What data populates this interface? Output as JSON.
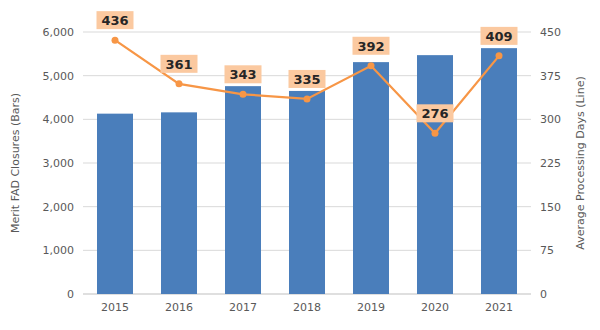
{
  "chart_data": {
    "type": "bar",
    "categories": [
      "2015",
      "2016",
      "2017",
      "2018",
      "2019",
      "2020",
      "2021"
    ],
    "series": [
      {
        "type": "bar",
        "color": "#4a7ebb",
        "values": [
          4130,
          4160,
          4760,
          4650,
          5310,
          5470,
          5630
        ]
      },
      {
        "type": "line",
        "axis": "y2",
        "color": "#f79646",
        "marker": "circle",
        "data_labels": true,
        "values": [
          436,
          361,
          343,
          335,
          392,
          276,
          409
        ]
      }
    ],
    "y_label": "Merit FAD Closures (Bars)",
    "y2_label": "Average Processing Days (Line)",
    "ylim": [
      0,
      6000
    ],
    "yticks": [
      0,
      {
        "value": 1000,
        "label": "1,000"
      },
      {
        "value": 2000,
        "label": "2,000"
      },
      {
        "value": 3000,
        "label": "3,000"
      },
      {
        "value": 4000,
        "label": "4,000"
      },
      {
        "value": 5000,
        "label": "5,000"
      },
      {
        "value": 6000,
        "label": "6,000"
      }
    ],
    "y2lim": [
      0,
      450
    ],
    "y2ticks": [
      0,
      75,
      150,
      225,
      300,
      375,
      450
    ],
    "grid": true
  }
}
